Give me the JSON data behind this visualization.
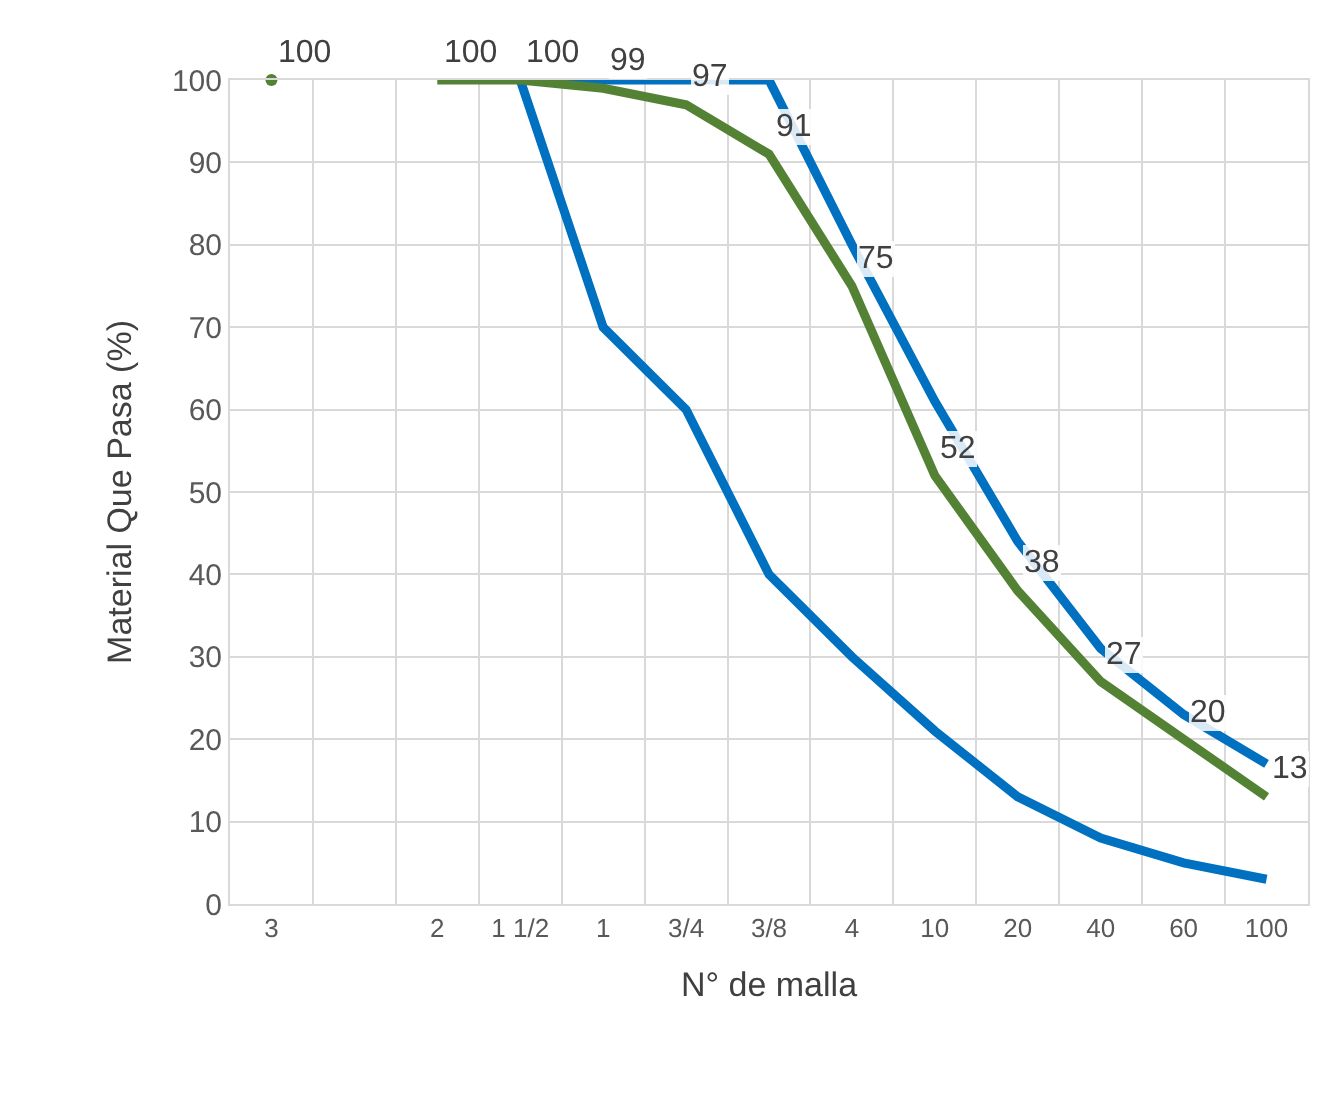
{
  "chart_data": {
    "type": "line",
    "xlabel": "N° de malla",
    "ylabel": "Material Que Pasa (%)",
    "categories": [
      "3",
      null,
      "2",
      "1 1/2",
      "1",
      "3/4",
      "3/8",
      "4",
      "10",
      "20",
      "40",
      "60",
      "100"
    ],
    "series": [
      {
        "color": "#0070c0",
        "values": [
          null,
          null,
          null,
          100,
          100,
          100,
          100,
          80,
          61,
          44,
          31,
          23,
          17
        ]
      },
      {
        "color": "#0070c0",
        "values": [
          null,
          null,
          null,
          100,
          70,
          60,
          40,
          30,
          21,
          13,
          8,
          5,
          3
        ]
      },
      {
        "color": "#548235",
        "values": [
          100,
          null,
          100,
          100,
          99,
          97,
          91,
          75,
          52,
          38,
          27,
          20,
          13
        ],
        "value_labels": [
          "100",
          null,
          "100",
          "100",
          "99",
          "97",
          "91",
          "75",
          "52",
          "38",
          "27",
          "20",
          "13"
        ]
      }
    ],
    "ylim": [
      0,
      100
    ],
    "yticks": [
      0,
      10,
      20,
      30,
      40,
      50,
      60,
      70,
      80,
      90,
      100
    ],
    "grid": true,
    "marker": "none",
    "line_style": "solid"
  }
}
